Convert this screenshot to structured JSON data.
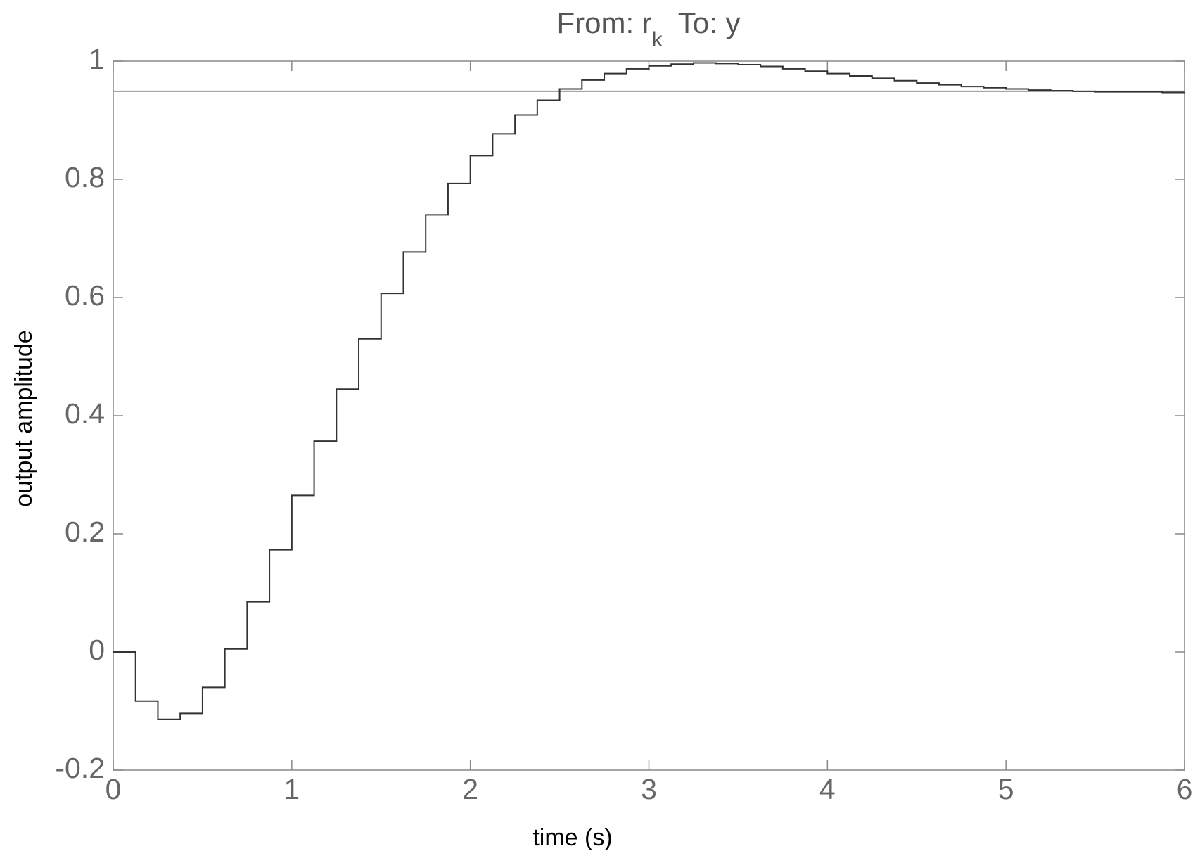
{
  "chart_data": {
    "type": "stairs",
    "title": {
      "prefix": "From: r",
      "subscript": "k",
      "suffix": "To: y"
    },
    "x_label": "time (s)",
    "y_label": "output  amplitude",
    "x": [
      0,
      0.125,
      0.25,
      0.375,
      0.5,
      0.625,
      0.75,
      0.875,
      1,
      1.125,
      1.25,
      1.375,
      1.5,
      1.625,
      1.75,
      1.875,
      2,
      2.125,
      2.25,
      2.375,
      2.5,
      2.625,
      2.75,
      2.875,
      3,
      3.125,
      3.25,
      3.375,
      3.5,
      3.625,
      3.75,
      3.875,
      4,
      4.125,
      4.25,
      4.375,
      4.5,
      4.625,
      4.75,
      4.875,
      5,
      5.125,
      5.25,
      5.375,
      5.5,
      5.625,
      5.75,
      5.875,
      6
    ],
    "values": [
      0,
      -0.083,
      -0.114,
      -0.104,
      -0.06,
      0.005,
      0.085,
      0.173,
      0.265,
      0.357,
      0.445,
      0.53,
      0.607,
      0.677,
      0.74,
      0.793,
      0.84,
      0.877,
      0.909,
      0.934,
      0.953,
      0.968,
      0.979,
      0.987,
      0.992,
      0.995,
      0.997,
      0.996,
      0.994,
      0.991,
      0.987,
      0.983,
      0.979,
      0.975,
      0.971,
      0.967,
      0.963,
      0.96,
      0.957,
      0.955,
      0.953,
      0.951,
      0.95,
      0.949,
      0.948,
      0.948,
      0.948,
      0.947,
      0.947
    ],
    "color": "#333333",
    "steady_state": 0.949,
    "steady_state_color": "#999999",
    "xlim": [
      0,
      6
    ],
    "xticks": [
      0,
      1,
      2,
      3,
      4,
      5,
      6
    ],
    "ylim": [
      -0.2,
      1
    ],
    "yticks": [
      -0.2,
      0,
      0.2,
      0.4,
      0.6,
      0.8,
      1
    ],
    "grid": false
  }
}
